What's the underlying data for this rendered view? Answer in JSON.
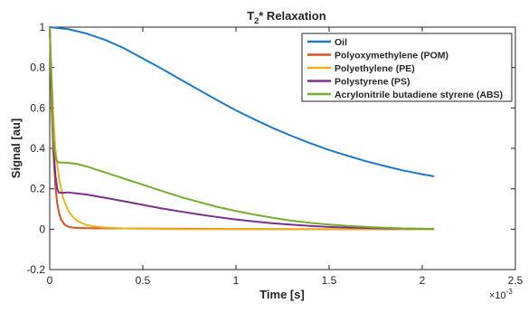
{
  "chart_data": {
    "type": "line",
    "title_main": "T",
    "title_sub": "2",
    "title_rest": "* Relaxation",
    "xlabel": "Time [s]",
    "ylabel": "Signal [au]",
    "x_exponent_base": "×10",
    "x_exponent_power": "-3",
    "xlim": [
      0,
      0.0025
    ],
    "ylim": [
      -0.2,
      1
    ],
    "x_ticks": [
      0,
      0.0005,
      0.001,
      0.0015,
      0.002,
      0.0025
    ],
    "x_tick_labels": [
      "0",
      "0.5",
      "1",
      "1.5",
      "2",
      "2.5"
    ],
    "y_ticks": [
      -0.2,
      0,
      0.2,
      0.4,
      0.6,
      0.8,
      1
    ],
    "y_tick_labels": [
      "-0.2",
      "0",
      "0.2",
      "0.4",
      "0.6",
      "0.8",
      "1"
    ],
    "grid": false,
    "legend_position": "top-right",
    "series": [
      {
        "name": "Oil",
        "color": "#1f7ac6",
        "x": [
          0,
          0.0001,
          0.0002,
          0.0003,
          0.0004,
          0.0005,
          0.0006,
          0.0007,
          0.0008,
          0.0009,
          0.001,
          0.0011,
          0.0012,
          0.0013,
          0.0014,
          0.0015,
          0.0016,
          0.0017,
          0.0018,
          0.0019,
          0.002,
          0.00206
        ],
        "y": [
          1.0,
          0.99,
          0.968,
          0.936,
          0.895,
          0.845,
          0.795,
          0.742,
          0.69,
          0.638,
          0.588,
          0.543,
          0.5,
          0.461,
          0.425,
          0.392,
          0.363,
          0.336,
          0.312,
          0.29,
          0.272,
          0.262
        ]
      },
      {
        "name": "Polyoxymethylene (POM)",
        "color": "#d9531f",
        "x": [
          0,
          1e-05,
          2e-05,
          3e-05,
          4e-05,
          5e-05,
          6e-05,
          8e-05,
          0.0001,
          0.00012,
          0.00015,
          0.0002,
          0.0005,
          0.001,
          0.0015,
          0.002,
          0.00206
        ],
        "y": [
          1.0,
          0.6,
          0.37,
          0.22,
          0.13,
          0.08,
          0.05,
          0.022,
          0.012,
          0.008,
          0.006,
          0.005,
          0.003,
          0.001,
          0.0,
          0.0,
          0.0
        ]
      },
      {
        "name": "Polyethylene (PE)",
        "color": "#edb120",
        "x": [
          0,
          1e-05,
          2e-05,
          3e-05,
          5e-05,
          7e-05,
          0.0001,
          0.00013,
          0.00016,
          0.0002,
          0.00025,
          0.0003,
          0.0004,
          0.0005,
          0.0007,
          0.001,
          0.0015,
          0.002,
          0.00206
        ],
        "y": [
          1.0,
          0.75,
          0.54,
          0.4,
          0.25,
          0.16,
          0.09,
          0.055,
          0.035,
          0.02,
          0.012,
          0.008,
          0.004,
          0.002,
          0.0,
          0.0,
          0.0,
          0.0,
          0.0
        ]
      },
      {
        "name": "Polystyrene (PS)",
        "color": "#7e2f8e",
        "x": [
          0,
          1e-05,
          2e-05,
          3e-05,
          4e-05,
          5e-05,
          7e-05,
          0.0001,
          0.0002,
          0.0003,
          0.0004,
          0.0005,
          0.0006,
          0.0007,
          0.0008,
          0.0009,
          0.001,
          0.0011,
          0.0012,
          0.0013,
          0.0014,
          0.0015,
          0.0016,
          0.0018,
          0.002,
          0.00206
        ],
        "y": [
          1.0,
          0.7,
          0.42,
          0.27,
          0.2,
          0.18,
          0.18,
          0.182,
          0.171,
          0.155,
          0.138,
          0.12,
          0.103,
          0.088,
          0.073,
          0.06,
          0.048,
          0.038,
          0.029,
          0.022,
          0.016,
          0.011,
          0.008,
          0.004,
          0.002,
          0.001
        ]
      },
      {
        "name": "Acrylonitrile butadiene styrene (ABS)",
        "color": "#77ac30",
        "x": [
          0,
          5e-06,
          1e-05,
          2e-05,
          3e-05,
          4e-05,
          5e-05,
          7e-05,
          0.0001,
          0.00015,
          0.0002,
          0.0003,
          0.0004,
          0.0005,
          0.0006,
          0.0007,
          0.0008,
          0.0009,
          0.001,
          0.0011,
          0.0012,
          0.0013,
          0.0014,
          0.0015,
          0.0016,
          0.0017,
          0.0018,
          0.0019,
          0.002,
          0.00206
        ],
        "y": [
          1.0,
          0.85,
          0.66,
          0.45,
          0.36,
          0.335,
          0.33,
          0.33,
          0.328,
          0.322,
          0.31,
          0.28,
          0.25,
          0.22,
          0.19,
          0.16,
          0.135,
          0.11,
          0.09,
          0.072,
          0.056,
          0.042,
          0.031,
          0.023,
          0.016,
          0.011,
          0.007,
          0.004,
          0.002,
          0.001
        ]
      }
    ]
  }
}
